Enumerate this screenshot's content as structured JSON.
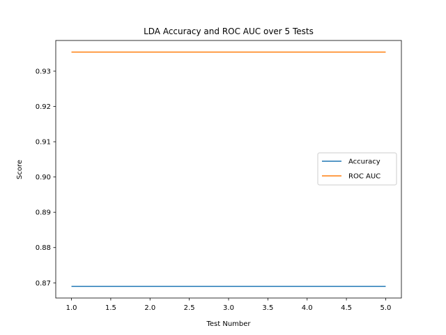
{
  "chart_data": {
    "type": "line",
    "title": "LDA Accuracy and ROC AUC over 5 Tests",
    "xlabel": "Test Number",
    "ylabel": "Score",
    "x": [
      1,
      2,
      3,
      4,
      5
    ],
    "xlim": [
      0.8,
      5.2
    ],
    "ylim": [
      0.8657,
      0.9387
    ],
    "xticks": [
      1.0,
      1.5,
      2.0,
      2.5,
      3.0,
      3.5,
      4.0,
      4.5,
      5.0
    ],
    "xtick_labels": [
      "1.0",
      "1.5",
      "2.0",
      "2.5",
      "3.0",
      "3.5",
      "4.0",
      "4.5",
      "5.0"
    ],
    "yticks": [
      0.87,
      0.88,
      0.89,
      0.9,
      0.91,
      0.92,
      0.93
    ],
    "ytick_labels": [
      "0.87",
      "0.88",
      "0.89",
      "0.90",
      "0.91",
      "0.92",
      "0.93"
    ],
    "grid": false,
    "legend_position": "center-right",
    "series": [
      {
        "name": "Accuracy",
        "color": "#1f77b4",
        "values": [
          0.869,
          0.869,
          0.869,
          0.869,
          0.869
        ]
      },
      {
        "name": "ROC AUC",
        "color": "#ff7f0e",
        "values": [
          0.9354,
          0.9354,
          0.9354,
          0.9354,
          0.9354
        ]
      }
    ]
  }
}
